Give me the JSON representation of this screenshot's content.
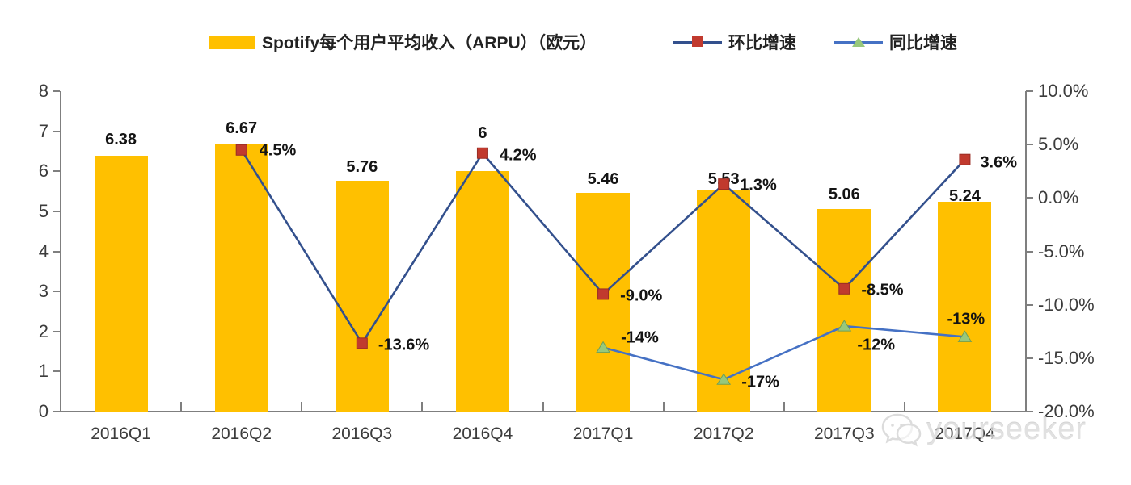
{
  "chart_data": {
    "type": "combo-bar-line",
    "categories": [
      "2016Q1",
      "2016Q2",
      "2016Q3",
      "2016Q4",
      "2017Q1",
      "2017Q2",
      "2017Q3",
      "2017Q4"
    ],
    "bar_series": {
      "name": "Spotify每个用户平均收入（ARPU）（欧元）",
      "axis": "left",
      "values": [
        6.38,
        6.67,
        5.76,
        6,
        5.46,
        5.53,
        5.06,
        5.24
      ],
      "labels": [
        "6.38",
        "6.67",
        "5.76",
        "6",
        "5.46",
        "5.53",
        "5.06",
        "5.24"
      ],
      "label_dy": [
        -31,
        -31,
        -28,
        -58,
        -28,
        -25,
        -29,
        -18
      ],
      "color": "#FFC000"
    },
    "line_series": [
      {
        "name": "环比增速",
        "axis": "right",
        "marker": "square",
        "line_color": "#33508d",
        "marker_color": "#c13a2e",
        "marker_edge": "#992d24",
        "values": [
          null,
          4.5,
          -13.6,
          4.2,
          -9.0,
          1.3,
          -8.5,
          3.6
        ],
        "labels": [
          null,
          "4.5%",
          "-13.6%",
          "4.2%",
          "-9.0%",
          "1.3%",
          "-8.5%",
          "3.6%"
        ],
        "label_offsets": [
          null,
          [
            22,
            1
          ],
          [
            20,
            3
          ],
          [
            21,
            3
          ],
          [
            21,
            3
          ],
          [
            20,
            2
          ],
          [
            21,
            2
          ],
          [
            19,
            4
          ]
        ]
      },
      {
        "name": "同比增速",
        "axis": "right",
        "marker": "triangle",
        "line_color": "#4571c4",
        "marker_color": "#97c87c",
        "marker_edge": "#6f9f56",
        "values": [
          null,
          null,
          null,
          null,
          -14,
          -17,
          -12,
          -13
        ],
        "labels": [
          null,
          null,
          null,
          null,
          "-14%",
          "-17%",
          "-12%",
          "-13%"
        ],
        "label_offsets": [
          null,
          null,
          null,
          null,
          [
            22,
            -12
          ],
          [
            22,
            4
          ],
          [
            16,
            24
          ],
          [
            -22,
            -21
          ]
        ]
      }
    ],
    "left_axis": {
      "min": 0,
      "max": 8,
      "ticks": [
        0,
        1,
        2,
        3,
        4,
        5,
        6,
        7,
        8
      ],
      "tick_labels": [
        "0",
        "1",
        "2",
        "3",
        "4",
        "5",
        "6",
        "7",
        "8"
      ]
    },
    "right_axis": {
      "min": -20,
      "max": 10,
      "ticks": [
        10,
        5,
        0,
        -5,
        -10,
        -15,
        -20
      ],
      "tick_labels": [
        "10.0%",
        "5.0%",
        "0.0%",
        "-5.0%",
        "-10.0%",
        "-15.0%",
        "-20.0%"
      ]
    },
    "legend_position": "top",
    "grid": "off"
  },
  "watermark": {
    "text": "yourseeker",
    "logo": "wechat-icon"
  },
  "colors": {
    "bar": "#FFC000",
    "qoq_line": "#33508d",
    "qoq_marker": "#c13a2e",
    "yoy_line": "#4571c4",
    "yoy_marker": "#97c87c",
    "axis": "#7f7f7f"
  }
}
